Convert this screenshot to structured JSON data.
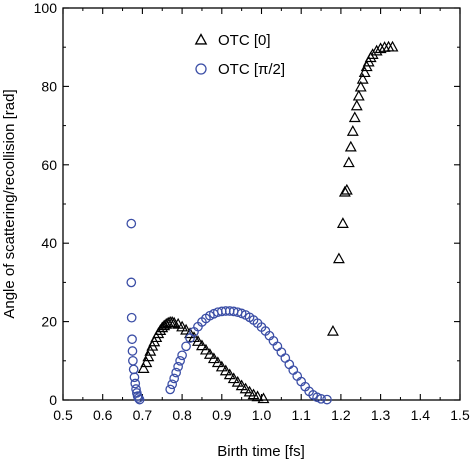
{
  "chart_data": {
    "type": "scatter",
    "xlabel": "Birth time [fs]",
    "ylabel": "Angle of scattering/recollision [rad]",
    "xlim": [
      0.5,
      1.5
    ],
    "ylim": [
      0,
      100
    ],
    "xticks": [
      "0.5",
      "0.6",
      "0.7",
      "0.8",
      "0.9",
      "1.0",
      "1.1",
      "1.2",
      "1.3",
      "1.4",
      "1.5"
    ],
    "yticks": [
      "0",
      "20",
      "40",
      "60",
      "80",
      "100"
    ],
    "legend_position": "top-center",
    "series": [
      {
        "name": "OTC [0]",
        "marker": "triangle",
        "color": "#000000",
        "points": [
          [
            0.703,
            8.0
          ],
          [
            0.71,
            9.5
          ],
          [
            0.715,
            11.0
          ],
          [
            0.72,
            12.4
          ],
          [
            0.725,
            13.7
          ],
          [
            0.73,
            14.8
          ],
          [
            0.735,
            15.9
          ],
          [
            0.74,
            16.9
          ],
          [
            0.745,
            17.7
          ],
          [
            0.75,
            18.4
          ],
          [
            0.755,
            18.9
          ],
          [
            0.76,
            19.3
          ],
          [
            0.765,
            19.6
          ],
          [
            0.77,
            19.8
          ],
          [
            0.775,
            19.8
          ],
          [
            0.78,
            19.6
          ],
          [
            0.79,
            19.3
          ],
          [
            0.8,
            18.6
          ],
          [
            0.81,
            17.8
          ],
          [
            0.82,
            16.9
          ],
          [
            0.83,
            15.9
          ],
          [
            0.84,
            14.9
          ],
          [
            0.85,
            13.8
          ],
          [
            0.86,
            12.7
          ],
          [
            0.87,
            11.6
          ],
          [
            0.88,
            10.5
          ],
          [
            0.89,
            9.5
          ],
          [
            0.9,
            8.4
          ],
          [
            0.91,
            7.4
          ],
          [
            0.92,
            6.4
          ],
          [
            0.93,
            5.4
          ],
          [
            0.94,
            4.5
          ],
          [
            0.95,
            3.6
          ],
          [
            0.96,
            2.8
          ],
          [
            0.97,
            2.0
          ],
          [
            0.98,
            1.3
          ],
          [
            0.99,
            0.8
          ],
          [
            1.005,
            0.3
          ],
          [
            1.18,
            17.5
          ],
          [
            1.195,
            36.0
          ],
          [
            1.205,
            45.0
          ],
          [
            1.21,
            53.0
          ],
          [
            1.215,
            53.5
          ],
          [
            1.22,
            60.5
          ],
          [
            1.225,
            64.5
          ],
          [
            1.23,
            68.5
          ],
          [
            1.235,
            72.0
          ],
          [
            1.24,
            75.0
          ],
          [
            1.245,
            77.5
          ],
          [
            1.25,
            79.8
          ],
          [
            1.255,
            81.8
          ],
          [
            1.26,
            83.5
          ],
          [
            1.265,
            85.0
          ],
          [
            1.27,
            86.2
          ],
          [
            1.275,
            87.3
          ],
          [
            1.28,
            88.1
          ],
          [
            1.29,
            89.0
          ],
          [
            1.3,
            89.6
          ],
          [
            1.31,
            89.9
          ],
          [
            1.32,
            90.0
          ],
          [
            1.33,
            90.0
          ]
        ]
      },
      {
        "name": "OTC [π/2]",
        "marker": "circle",
        "color": "#3b4ea6",
        "points": [
          [
            0.672,
            45.0
          ],
          [
            0.672,
            30.0
          ],
          [
            0.673,
            21.0
          ],
          [
            0.674,
            15.5
          ],
          [
            0.675,
            12.5
          ],
          [
            0.676,
            10.0
          ],
          [
            0.678,
            7.8
          ],
          [
            0.68,
            5.8
          ],
          [
            0.682,
            4.2
          ],
          [
            0.684,
            2.8
          ],
          [
            0.686,
            1.8
          ],
          [
            0.688,
            1.0
          ],
          [
            0.69,
            0.5
          ],
          [
            0.693,
            0.1
          ],
          [
            0.77,
            2.7
          ],
          [
            0.775,
            4.0
          ],
          [
            0.78,
            5.5
          ],
          [
            0.785,
            7.0
          ],
          [
            0.79,
            8.5
          ],
          [
            0.795,
            10.0
          ],
          [
            0.8,
            11.4
          ],
          [
            0.81,
            13.7
          ],
          [
            0.82,
            15.8
          ],
          [
            0.83,
            17.4
          ],
          [
            0.84,
            18.7
          ],
          [
            0.85,
            19.9
          ],
          [
            0.86,
            20.8
          ],
          [
            0.87,
            21.5
          ],
          [
            0.88,
            22.0
          ],
          [
            0.89,
            22.4
          ],
          [
            0.9,
            22.6
          ],
          [
            0.91,
            22.7
          ],
          [
            0.92,
            22.7
          ],
          [
            0.93,
            22.6
          ],
          [
            0.94,
            22.4
          ],
          [
            0.95,
            22.1
          ],
          [
            0.96,
            21.7
          ],
          [
            0.97,
            21.1
          ],
          [
            0.98,
            20.4
          ],
          [
            0.99,
            19.6
          ],
          [
            1.0,
            18.6
          ],
          [
            1.01,
            17.6
          ],
          [
            1.02,
            16.4
          ],
          [
            1.03,
            15.1
          ],
          [
            1.04,
            13.7
          ],
          [
            1.05,
            12.2
          ],
          [
            1.06,
            10.7
          ],
          [
            1.07,
            9.1
          ],
          [
            1.08,
            7.6
          ],
          [
            1.09,
            6.1
          ],
          [
            1.1,
            4.7
          ],
          [
            1.11,
            3.4
          ],
          [
            1.12,
            2.2
          ],
          [
            1.13,
            1.3
          ],
          [
            1.14,
            0.7
          ],
          [
            1.15,
            0.3
          ],
          [
            1.165,
            0.1
          ]
        ]
      }
    ]
  }
}
